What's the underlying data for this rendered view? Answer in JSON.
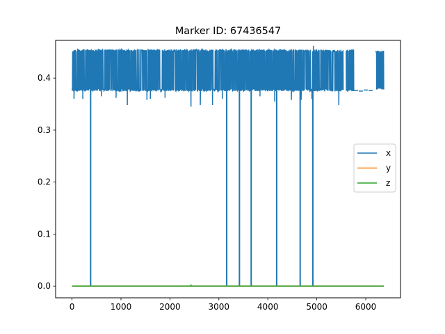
{
  "chart_data": {
    "type": "line",
    "title": "Marker ID: 67436547",
    "xlabel": "",
    "ylabel": "",
    "xlim": [
      -335,
      6710
    ],
    "ylim": [
      -0.0225,
      0.4725
    ],
    "xticks": [
      0,
      1000,
      2000,
      3000,
      4000,
      5000,
      6000
    ],
    "xtick_labels": [
      "0",
      "1000",
      "2000",
      "3000",
      "4000",
      "5000",
      "6000"
    ],
    "yticks": [
      0.0,
      0.1,
      0.2,
      0.3,
      0.4
    ],
    "ytick_labels": [
      "0.0",
      "0.1",
      "0.2",
      "0.3",
      "0.4"
    ],
    "grid": false,
    "legend_position": "center-right",
    "series": [
      {
        "name": "x",
        "color": "#1f77b4",
        "band": [
          [
            0,
            5760,
            0.375,
            0.455
          ],
          [
            6200,
            6370,
            0.378,
            0.453
          ]
        ],
        "gaps": [
          [
            5540,
            5600
          ],
          [
            5770,
            6200
          ]
        ],
        "sparse_points": [
          [
            5800,
            0.376
          ],
          [
            5900,
            0.375
          ],
          [
            6000,
            0.377
          ],
          [
            6100,
            0.376
          ]
        ],
        "dips_to_zero": [
          380,
          3160,
          3420,
          3660,
          4180,
          4660,
          4920
        ],
        "small_dips": [
          [
            40,
            0.36
          ],
          [
            220,
            0.36
          ],
          [
            600,
            0.365
          ],
          [
            900,
            0.362
          ],
          [
            1130,
            0.348
          ],
          [
            1530,
            0.358
          ],
          [
            1600,
            0.36
          ],
          [
            1900,
            0.362
          ],
          [
            2430,
            0.345
          ],
          [
            2620,
            0.348
          ],
          [
            2870,
            0.348
          ],
          [
            3070,
            0.36
          ],
          [
            3660,
            0.36
          ],
          [
            3840,
            0.365
          ],
          [
            4140,
            0.355
          ],
          [
            4480,
            0.358
          ],
          [
            4680,
            0.358
          ],
          [
            4900,
            0.36
          ],
          [
            5450,
            0.348
          ]
        ],
        "spikes": [
          [
            4930,
            0.462
          ]
        ]
      },
      {
        "name": "y",
        "color": "#ff7f0e",
        "values": [
          [
            0,
            0.0
          ],
          [
            6370,
            0.0
          ]
        ]
      },
      {
        "name": "z",
        "color": "#2ca02c",
        "values": [
          [
            0,
            0.0
          ],
          [
            2420,
            0.0
          ],
          [
            2430,
            0.002
          ],
          [
            2440,
            0.0
          ],
          [
            6370,
            0.0
          ]
        ]
      }
    ]
  }
}
